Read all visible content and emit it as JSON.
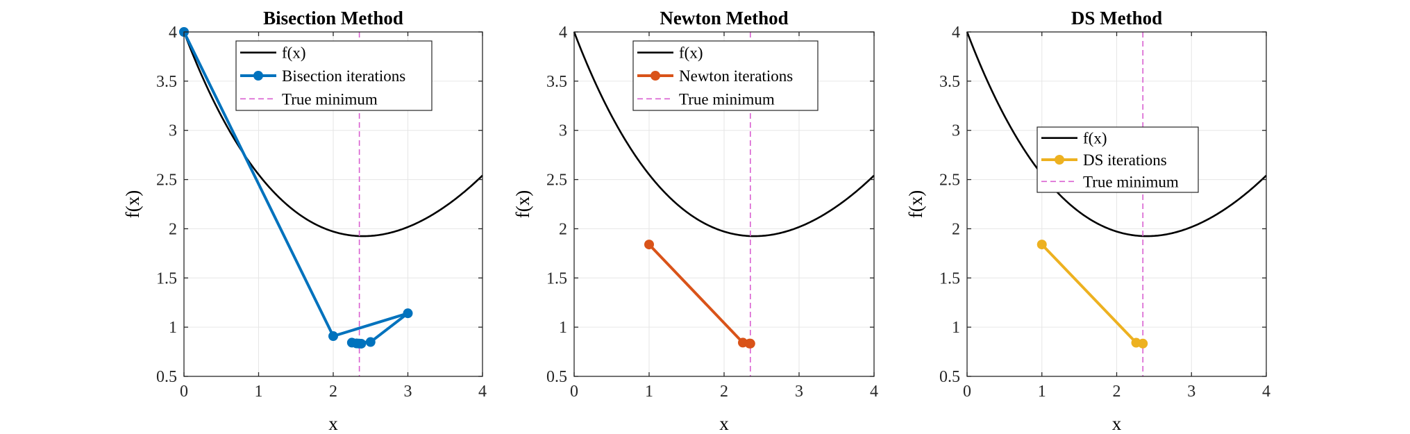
{
  "chart_data": [
    {
      "type": "line",
      "title": "Bisection Method",
      "xlabel": "x",
      "ylabel": "f(x)",
      "xlim": [
        0,
        4
      ],
      "ylim": [
        0.5,
        4
      ],
      "xticks": [
        "0",
        "1",
        "2",
        "3",
        "4"
      ],
      "yticks": [
        "0.5",
        "1",
        "1.5",
        "2",
        "2.5",
        "3",
        "3.5",
        "4"
      ],
      "grid": true,
      "legend_position": "top-right",
      "curve": {
        "name": "f(x)",
        "color": "#000000"
      },
      "iterations": {
        "name": "Bisection iterations",
        "color": "#0072BD",
        "x": [
          0,
          2,
          3,
          2.5,
          2.25,
          2.375,
          2.3125,
          2.34375
        ],
        "y": [
          4.0,
          0.909,
          1.141,
          0.849,
          0.843,
          0.832,
          0.835,
          0.833
        ]
      },
      "true_minimum": {
        "name": "True minimum",
        "x": 2.35,
        "color": "#D95FD0"
      }
    },
    {
      "type": "line",
      "title": "Newton Method",
      "xlabel": "x",
      "ylabel": "f(x)",
      "xlim": [
        0,
        4
      ],
      "ylim": [
        0.5,
        4
      ],
      "xticks": [
        "0",
        "1",
        "2",
        "3",
        "4"
      ],
      "yticks": [
        "0.5",
        "1",
        "1.5",
        "2",
        "2.5",
        "3",
        "3.5",
        "4"
      ],
      "grid": true,
      "legend_position": "top",
      "curve": {
        "name": "f(x)",
        "color": "#000000"
      },
      "iterations": {
        "name": "Newton iterations",
        "color": "#D95319",
        "x": [
          1,
          2.25,
          2.34,
          2.35
        ],
        "y": [
          1.84,
          0.843,
          0.833,
          0.833
        ]
      },
      "true_minimum": {
        "name": "True minimum",
        "x": 2.35,
        "color": "#D95FD0"
      }
    },
    {
      "type": "line",
      "title": "DS Method",
      "xlabel": "x",
      "ylabel": "f(x)",
      "xlim": [
        0,
        4
      ],
      "ylim": [
        0.5,
        4
      ],
      "xticks": [
        "0",
        "1",
        "2",
        "3",
        "4"
      ],
      "yticks": [
        "0.5",
        "1",
        "1.5",
        "2",
        "2.5",
        "3",
        "3.5",
        "4"
      ],
      "grid": true,
      "legend_position": "center",
      "curve": {
        "name": "f(x)",
        "color": "#000000"
      },
      "iterations": {
        "name": "DS iterations",
        "color": "#EDB120",
        "x": [
          1,
          2.26,
          2.35
        ],
        "y": [
          1.84,
          0.842,
          0.833
        ]
      },
      "true_minimum": {
        "name": "True minimum",
        "x": 2.35,
        "color": "#D95FD0"
      }
    }
  ]
}
